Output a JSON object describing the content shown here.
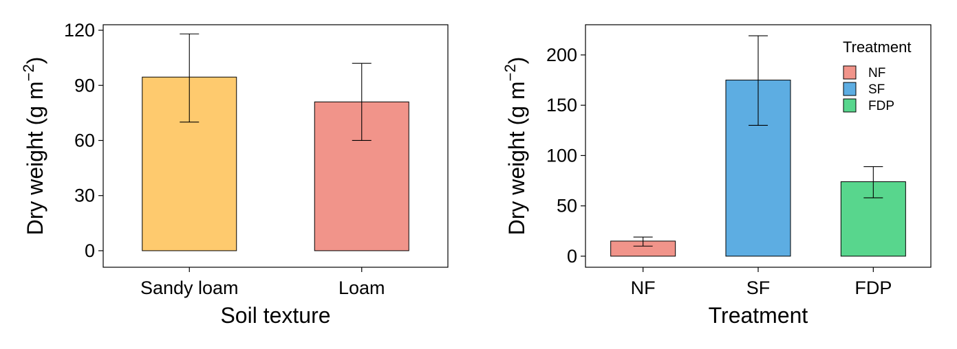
{
  "chart_data": [
    {
      "type": "bar",
      "categories": [
        "Sandy loam",
        "Loam"
      ],
      "values": [
        94.5,
        81
      ],
      "error_low": [
        70,
        60
      ],
      "error_high": [
        118,
        102
      ],
      "colors": [
        "#FECA6E",
        "#F1948A"
      ],
      "xlabel": "Soil texture",
      "ylabel": "Dry weight (g m",
      "ylabel_sup": "−2",
      "ylabel_close": ")",
      "ylim": [
        -9,
        123
      ],
      "yticks": [
        0,
        30,
        60,
        90,
        120
      ],
      "legend": null
    },
    {
      "type": "bar",
      "categories": [
        "NF",
        "SF",
        "FDP"
      ],
      "values": [
        15,
        175,
        74
      ],
      "error_low": [
        10,
        130,
        58
      ],
      "error_high": [
        19,
        219,
        89
      ],
      "colors": [
        "#F1948A",
        "#5DADE2",
        "#58D68D"
      ],
      "xlabel": "Treatment",
      "ylabel": "Dry weight (g m",
      "ylabel_sup": "−2",
      "ylabel_close": ")",
      "ylim": [
        -11,
        230
      ],
      "yticks": [
        0,
        50,
        100,
        150,
        200
      ],
      "legend": {
        "title": "Treatment",
        "position": "top-right",
        "items": [
          {
            "label": "NF",
            "color": "#F1948A"
          },
          {
            "label": "SF",
            "color": "#5DADE2"
          },
          {
            "label": "FDP",
            "color": "#58D68D"
          }
        ]
      }
    }
  ]
}
